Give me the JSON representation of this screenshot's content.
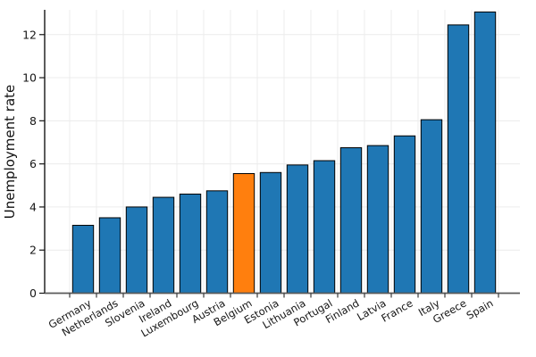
{
  "figure": {
    "background": "#ffffff"
  },
  "chart_data": {
    "type": "bar",
    "title": "",
    "xlabel": "",
    "ylabel": "Unemployment rate",
    "categories": [
      "Germany",
      "Netherlands",
      "Slovenia",
      "Ireland",
      "Luxembourg",
      "Austria",
      "Belgium",
      "Estonia",
      "Lithuania",
      "Portugal",
      "Finland",
      "Latvia",
      "France",
      "Italy",
      "Greece",
      "Spain"
    ],
    "values": [
      3.15,
      3.5,
      4.0,
      4.45,
      4.6,
      4.75,
      5.55,
      5.6,
      5.95,
      6.15,
      6.75,
      6.85,
      7.3,
      8.05,
      12.45,
      13.05
    ],
    "highlighted_category": "Belgium",
    "bar_color": "#1f77b4",
    "highlight_color": "#ff7f0e",
    "bar_edge_color": "#000000",
    "ytick_values": [
      0,
      2,
      4,
      6,
      8,
      10,
      12
    ],
    "ylim": [
      0,
      13.15
    ],
    "grid": true,
    "grid_color": "#ececec",
    "x_tick_rotation_deg": 30,
    "legend": "none"
  }
}
